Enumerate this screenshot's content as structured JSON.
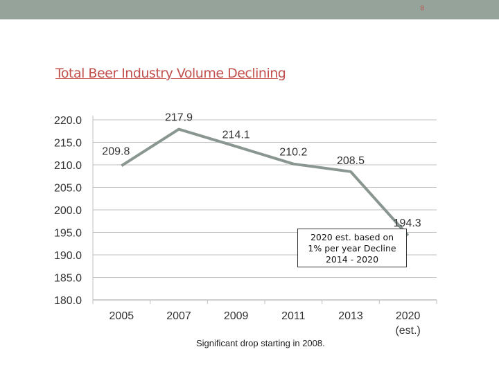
{
  "slide_number": "8",
  "title": "Total Beer Industry Volume Declining",
  "colors": {
    "topbar": "#95a39a",
    "title": "#c0504d",
    "line": "#8a9690",
    "grid": "#bfbfbf"
  },
  "chart_data": {
    "type": "line",
    "categories": [
      "2005",
      "2007",
      "2009",
      "2011",
      "2013",
      "2020"
    ],
    "category_sublabels": [
      "",
      "",
      "",
      "",
      "",
      "(est.)"
    ],
    "values": [
      209.8,
      217.9,
      214.1,
      210.2,
      208.5,
      194.3
    ],
    "data_labels": [
      "209.8",
      "217.9",
      "214.1",
      "210.2",
      "208.5",
      "194.3"
    ],
    "ylim": [
      180.0,
      220.0
    ],
    "yticks": [
      "220.0",
      "215.0",
      "210.0",
      "205.0",
      "200.0",
      "195.0",
      "190.0",
      "185.0",
      "180.0"
    ],
    "grid": true,
    "xlabel": "",
    "ylabel": ""
  },
  "annotation": {
    "lines": [
      "2020 est. based on",
      "1% per year Decline",
      "2014 - 2020"
    ]
  },
  "caption": "Significant drop starting in 2008."
}
